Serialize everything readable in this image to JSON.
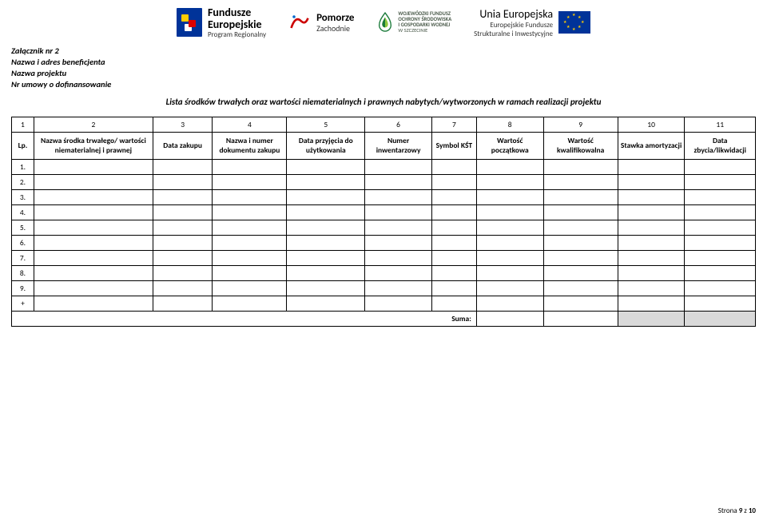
{
  "logos": {
    "fe_title": "Fundusze",
    "fe_title2": "Europejskie",
    "fe_sub": "Program Regionalny",
    "pomorze_title": "Pomorze",
    "pomorze_sub": "Zachodnie",
    "wfos_l1": "WOJEWÓDZKI FUNDUSZ",
    "wfos_l2": "OCHRONY ŚRODOWISKA",
    "wfos_l3": "I GOSPODARKI WODNEJ",
    "wfos_l4": "W SZCZECINIE",
    "ue_title": "Unia Europejska",
    "ue_sub1": "Europejskie Fundusze",
    "ue_sub2": "Strukturalne i Inwestycyjne"
  },
  "header": {
    "line1": "Załącznik nr 2",
    "line2": "Nazwa i adres beneficjenta",
    "line3": "Nazwa projektu",
    "line4": "Nr umowy o dofinansowanie"
  },
  "title": "Lista środków trwałych oraz wartości niematerialnych i prawnych nabytych/wytworzonych w ramach realizacji projektu",
  "col_nums": [
    "1",
    "2",
    "3",
    "4",
    "5",
    "6",
    "7",
    "8",
    "9",
    "10",
    "11"
  ],
  "columns": [
    "Lp.",
    "Nazwa środka trwałego/ wartości niematerialnej i prawnej",
    "Data zakupu",
    "Nazwa i numer dokumentu zakupu",
    "Data przyjęcia do użytkowania",
    "Numer inwentarzowy",
    "Symbol KŚT",
    "Wartość początkowa",
    "Wartość kwalifikowalna",
    "Stawka amortyzacji",
    "Data zbycia/likwidacji"
  ],
  "col_widths": [
    "3%",
    "16%",
    "8%",
    "10%",
    "10.5%",
    "9%",
    "6%",
    "9%",
    "10%",
    "9%",
    "9.5%"
  ],
  "row_labels": [
    "1.",
    "2.",
    "3.",
    "4.",
    "5.",
    "6.",
    "7.",
    "8.",
    "9.",
    "+"
  ],
  "sum_label": "Suma:",
  "footer_prefix": "Strona ",
  "footer_page": "9",
  "footer_sep": " z ",
  "footer_total": "10"
}
